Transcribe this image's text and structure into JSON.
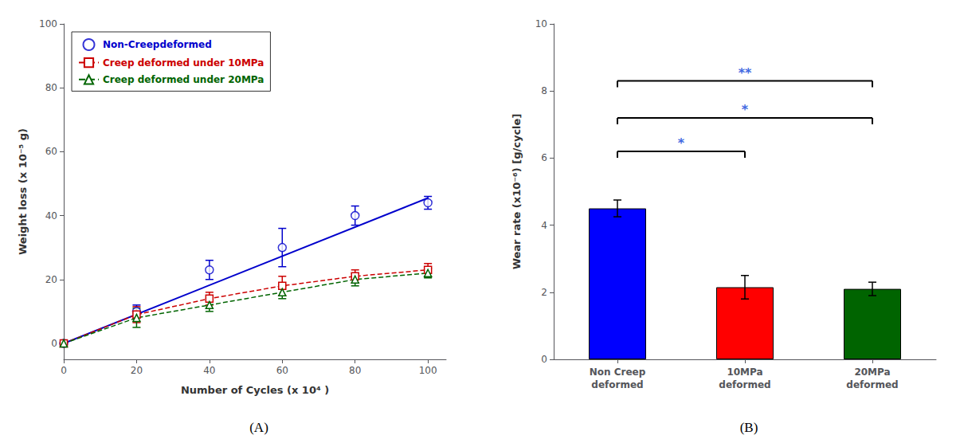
{
  "chart_data": [
    {
      "type": "line",
      "title": "(A)",
      "x": [
        0,
        20,
        40,
        60,
        80,
        100
      ],
      "series": [
        {
          "name": "Non-Creepdeformed",
          "color": "#0000cc",
          "marker": "circle",
          "line_style": "solid",
          "values": [
            0,
            10,
            23,
            30,
            40,
            44
          ],
          "errors": [
            0.5,
            2,
            3,
            6,
            3,
            2
          ],
          "fit": {
            "x": [
              0,
              100
            ],
            "values": [
              0,
              45.5
            ]
          }
        },
        {
          "name": "Creep deformed under 10MPa",
          "color": "#cc0000",
          "marker": "square",
          "line_style": "dashed",
          "values": [
            0,
            9,
            14,
            18,
            21,
            23
          ],
          "errors": [
            0.5,
            2.5,
            2,
            3,
            2,
            2
          ]
        },
        {
          "name": "Creep deformed under 20MPa",
          "color": "#006400",
          "marker": "triangle",
          "line_style": "dashed",
          "values": [
            0,
            8,
            12,
            16,
            20,
            22
          ],
          "errors": [
            0.5,
            3,
            2,
            2,
            2,
            1.5
          ]
        }
      ],
      "xlabel": "Number of Cycles (x 10⁴ )",
      "ylabel": "Weight loss (x 10⁻⁵ g)",
      "xlim": [
        0,
        105
      ],
      "ylim": [
        -5,
        100
      ],
      "xticks": [
        0,
        20,
        40,
        60,
        80,
        100
      ],
      "yticks": [
        0,
        20,
        40,
        60,
        80,
        100
      ],
      "legend": "upper left",
      "grid": false
    },
    {
      "type": "bar",
      "title": "(B)",
      "categories": [
        "Non Creep\ndeformed",
        "10MPa\ndeformed",
        "20MPa\ndeformed"
      ],
      "values": [
        4.5,
        2.15,
        2.1
      ],
      "errors": [
        0.25,
        0.35,
        0.2
      ],
      "colors": [
        "#0000ff",
        "#ff0000",
        "#006400"
      ],
      "ylabel": "Wear rate (x10⁻⁶) [g/cycle]",
      "ylim": [
        0,
        10
      ],
      "yticks": [
        0,
        2,
        4,
        6,
        8,
        10
      ],
      "annotations": [
        {
          "from": 0,
          "to": 1,
          "y": 6.2,
          "text": "*",
          "color": "#4169e1"
        },
        {
          "from": 0,
          "to": 2,
          "y": 7.2,
          "text": "*",
          "color": "#4169e1"
        },
        {
          "from": 0,
          "to": 2,
          "y": 8.3,
          "text": "**",
          "color": "#4169e1"
        }
      ],
      "grid": false
    }
  ]
}
